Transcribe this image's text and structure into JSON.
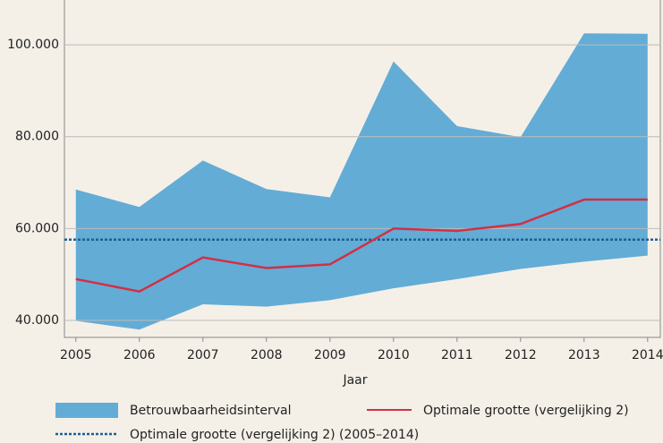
{
  "chart_data": {
    "type": "line",
    "x": [
      2005,
      2006,
      2007,
      2008,
      2009,
      2010,
      2011,
      2012,
      2013,
      2014
    ],
    "xlabel": "Jaar",
    "band": {
      "name": "Betrouwbaarheidsinterval",
      "color": "#63acd6",
      "upper": [
        68500,
        64700,
        74800,
        68600,
        66800,
        96400,
        82300,
        79900,
        102500,
        102400
      ],
      "lower": [
        39900,
        38000,
        43500,
        43000,
        44400,
        47000,
        49000,
        51200,
        52800,
        54100
      ]
    },
    "series": [
      {
        "name": "Optimale grootte (vergelijking 2)",
        "color": "#d32f44",
        "values": [
          49000,
          46300,
          53700,
          51400,
          52200,
          60000,
          59500,
          61000,
          66300,
          66300
        ]
      }
    ],
    "reference": {
      "name": "Optimale grootte (vergelijking 2) (2005–2014)",
      "color": "#1d5f95",
      "value": 57600
    },
    "xlim": [
      2004.82,
      2014.2
    ],
    "ylim": [
      36300,
      110150
    ],
    "xticks": [
      2005,
      2006,
      2007,
      2008,
      2009,
      2010,
      2011,
      2012,
      2013,
      2014
    ],
    "yticks": [
      {
        "value": 40000,
        "label": "40.000"
      },
      {
        "value": 60000,
        "label": "60.000"
      },
      {
        "value": 80000,
        "label": "80.000"
      },
      {
        "value": 100000,
        "label": "100.000"
      }
    ],
    "grid": true
  }
}
